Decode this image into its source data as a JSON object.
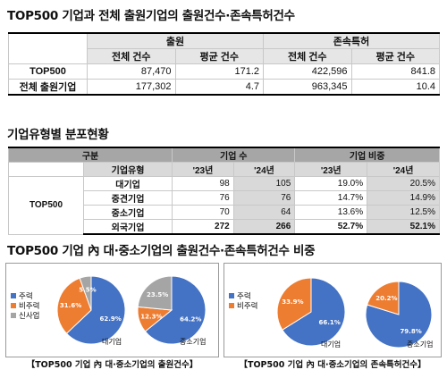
{
  "titles": {
    "t1": "TOP500 기업과 전체 출원기업의 출원건수·존속특허건수",
    "t2": "기업유형별 분포현황",
    "t3": "TOP500 기업 內 대·중소기업의 출원건수·존속특허건수 비중"
  },
  "table1": {
    "group_headers": [
      "출원",
      "존속특허"
    ],
    "sub_headers": [
      "전체 건수",
      "평균 건수",
      "전체 건수",
      "평균 건수"
    ],
    "rows": [
      {
        "label": "TOP500",
        "values": [
          "87,470",
          "171.2",
          "422,596",
          "841.8"
        ]
      },
      {
        "label": "전체 출원기업",
        "values": [
          "177,302",
          "4.7",
          "963,345",
          "10.4"
        ]
      }
    ]
  },
  "table2": {
    "header_group": "구분",
    "header_count": "기업 수",
    "header_share": "기업 비중",
    "type_header": "기업유형",
    "years": [
      "'23년",
      "'24년",
      "'23년",
      "'24년"
    ],
    "group_label": "TOP500",
    "rows": [
      {
        "type": "대기업",
        "values": [
          "98",
          "105",
          "19.0%",
          "20.5%"
        ]
      },
      {
        "type": "중견기업",
        "values": [
          "76",
          "76",
          "14.7%",
          "14.9%"
        ]
      },
      {
        "type": "중소기업",
        "values": [
          "70",
          "64",
          "13.6%",
          "12.5%"
        ]
      },
      {
        "type": "외국기업",
        "values": [
          "272",
          "266",
          "52.7%",
          "52.1%"
        ]
      }
    ]
  },
  "chart_data": [
    {
      "type": "pie",
      "title": "",
      "legend": [
        "주력",
        "비주력",
        "신사업"
      ],
      "pies": [
        {
          "name": "대기업",
          "values": [
            62.9,
            31.6,
            5.5
          ],
          "labels": [
            "62.9%",
            "31.6%",
            "5.5%"
          ]
        },
        {
          "name": "중소기업",
          "values": [
            64.2,
            12.3,
            23.5
          ],
          "labels": [
            "64.2%",
            "12.3%",
            "23.5%"
          ]
        }
      ],
      "caption": "【TOP500 기업 內 대·중소기업의 출원건수】"
    },
    {
      "type": "pie",
      "title": "",
      "legend": [
        "주력",
        "비주력"
      ],
      "pies": [
        {
          "name": "대기업",
          "values": [
            66.1,
            33.9
          ],
          "labels": [
            "66.1%",
            "33.9%"
          ]
        },
        {
          "name": "중소기업",
          "values": [
            79.8,
            20.2
          ],
          "labels": [
            "79.8%",
            "20.2%"
          ]
        }
      ],
      "caption": "【TOP500 기업 內 대·중소기업의 존속특허건수】"
    }
  ],
  "colors": {
    "main": "#4472c4",
    "non_main": "#ed7d31",
    "new_business": "#a5a5a5"
  }
}
